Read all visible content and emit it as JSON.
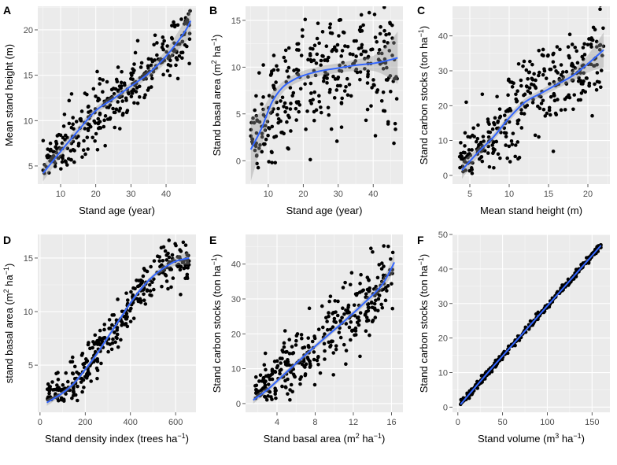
{
  "chart_data": [
    {
      "panel": "A",
      "type": "scatter",
      "xlabel": "Stand age (year)",
      "ylabel": "Mean stand height (m)",
      "xlim": [
        3.5,
        48.5
      ],
      "ylim": [
        3,
        22.6
      ],
      "xticks": [
        10,
        20,
        30,
        40
      ],
      "xtick_labels": [
        "10",
        "20",
        "30",
        "40"
      ],
      "yticks": [
        5,
        10,
        15,
        20
      ],
      "ytick_labels": [
        "5",
        "10",
        "15",
        "20"
      ],
      "smooth": {
        "x": [
          5,
          10,
          15,
          20,
          25,
          30,
          35,
          40,
          45,
          47
        ],
        "y": [
          4.2,
          6.6,
          8.9,
          11.1,
          12.4,
          13.8,
          15.2,
          17.1,
          19.6,
          21.0
        ],
        "lo": [
          3.3,
          6.0,
          8.4,
          10.7,
          12.0,
          13.4,
          14.7,
          16.4,
          18.4,
          19.5
        ],
        "hi": [
          5.1,
          7.2,
          9.4,
          11.5,
          12.8,
          14.2,
          15.7,
          17.8,
          20.8,
          22.5
        ]
      },
      "gen": {
        "n": 330,
        "xmin": 5,
        "xmax": 47,
        "noise": 1.8,
        "seed": 11
      }
    },
    {
      "panel": "B",
      "type": "scatter",
      "xlabel": "Stand age (year)",
      "ylabel": "Stand basal area (m2 ha-1)",
      "xlim": [
        3.5,
        48.5
      ],
      "ylim": [
        -2.5,
        16.5
      ],
      "xticks": [
        10,
        20,
        30,
        40
      ],
      "xtick_labels": [
        "10",
        "20",
        "30",
        "40"
      ],
      "yticks": [
        0,
        5,
        10,
        15
      ],
      "ytick_labels": [
        "0",
        "5",
        "10",
        "15"
      ],
      "smooth": {
        "x": [
          5,
          8,
          11,
          14,
          17,
          20,
          25,
          30,
          35,
          40,
          44,
          47
        ],
        "y": [
          1.2,
          3.4,
          6.2,
          7.8,
          8.6,
          9.1,
          9.6,
          9.9,
          10.2,
          10.4,
          10.7,
          11.0
        ],
        "lo": [
          -2.2,
          1.5,
          5.2,
          7.2,
          8.1,
          8.6,
          9.1,
          9.4,
          9.6,
          9.6,
          9.0,
          8.2
        ],
        "hi": [
          4.6,
          5.3,
          7.2,
          8.4,
          9.1,
          9.6,
          10.1,
          10.4,
          10.8,
          11.2,
          12.4,
          13.8
        ]
      },
      "gen": {
        "n": 340,
        "xmin": 5,
        "xmax": 47,
        "noise": 3.1,
        "seed": 23
      }
    },
    {
      "panel": "C",
      "type": "scatter",
      "xlabel": "Mean stand height (m)",
      "ylabel": "Stand carbon stocks (ton ha-1)",
      "xlim": [
        2.8,
        22.8
      ],
      "ylim": [
        -2.5,
        48.5
      ],
      "xticks": [
        5,
        10,
        15,
        20
      ],
      "xtick_labels": [
        "5",
        "10",
        "15",
        "20"
      ],
      "yticks": [
        0,
        10,
        20,
        30,
        40
      ],
      "ytick_labels": [
        "0",
        "10",
        "20",
        "30",
        "40"
      ],
      "smooth": {
        "x": [
          4,
          6,
          8,
          10,
          12,
          14,
          16,
          18,
          20,
          22
        ],
        "y": [
          1.5,
          6.5,
          11.0,
          16.5,
          21.0,
          23.5,
          26.0,
          28.5,
          32.0,
          36.0
        ],
        "lo": [
          -1.0,
          5.2,
          10.0,
          15.5,
          20.0,
          22.5,
          24.8,
          27.0,
          29.5,
          31.0
        ],
        "hi": [
          4.0,
          7.8,
          12.0,
          17.5,
          22.0,
          24.5,
          27.2,
          30.0,
          34.5,
          41.0
        ]
      },
      "gen": {
        "n": 330,
        "xmin": 3.5,
        "xmax": 22,
        "noise": 6.0,
        "seed": 37
      }
    },
    {
      "panel": "D",
      "type": "scatter",
      "xlabel": "Stand density index (trees ha-1)",
      "ylabel": "stand basal area (m2 ha-1)",
      "xlim": [
        -10,
        690
      ],
      "ylim": [
        0.6,
        17.2
      ],
      "xticks": [
        0,
        200,
        400,
        600
      ],
      "xtick_labels": [
        "0",
        "200",
        "400",
        "600"
      ],
      "yticks": [
        5,
        10,
        15
      ],
      "ytick_labels": [
        "5",
        "10",
        "15"
      ],
      "smooth": {
        "x": [
          30,
          100,
          150,
          200,
          250,
          300,
          350,
          400,
          450,
          500,
          550,
          600,
          660
        ],
        "y": [
          1.5,
          2.4,
          3.3,
          4.6,
          6.0,
          7.6,
          9.2,
          10.8,
          12.2,
          13.3,
          14.1,
          14.7,
          15.0
        ],
        "lo": [
          1.2,
          2.2,
          3.1,
          4.4,
          5.8,
          7.4,
          9.0,
          10.6,
          12.0,
          13.1,
          13.8,
          14.3,
          14.4
        ],
        "hi": [
          1.8,
          2.6,
          3.5,
          4.8,
          6.2,
          7.8,
          9.4,
          11.0,
          12.4,
          13.5,
          14.4,
          15.1,
          15.6
        ]
      },
      "gen": {
        "n": 340,
        "xmin": 30,
        "xmax": 660,
        "noise": 1.0,
        "seed": 41
      }
    },
    {
      "panel": "E",
      "type": "scatter",
      "xlabel": "Stand basal area (m2 ha-1)",
      "ylabel": "Stand carbon stocks (ton ha-1)",
      "xlim": [
        0.7,
        17.2
      ],
      "ylim": [
        -2.5,
        48.5
      ],
      "xticks": [
        4,
        8,
        12,
        16
      ],
      "xtick_labels": [
        "4",
        "8",
        "12",
        "16"
      ],
      "yticks": [
        0,
        10,
        20,
        30,
        40
      ],
      "ytick_labels": [
        "0",
        "10",
        "20",
        "30",
        "40"
      ],
      "smooth": {
        "x": [
          1.5,
          3,
          5,
          7,
          9,
          11,
          13,
          15,
          16.3
        ],
        "y": [
          1.0,
          4.0,
          9.0,
          14.0,
          18.8,
          23.5,
          28.5,
          34.0,
          40.5
        ],
        "lo": [
          0.0,
          3.2,
          8.3,
          13.3,
          18.1,
          22.8,
          27.6,
          32.6,
          38.0
        ],
        "hi": [
          2.0,
          4.8,
          9.7,
          14.7,
          19.5,
          24.2,
          29.4,
          35.4,
          43.0
        ]
      },
      "gen": {
        "n": 340,
        "xmin": 1.5,
        "xmax": 16.3,
        "noise": 5.0,
        "seed": 53
      }
    },
    {
      "panel": "F",
      "type": "scatter",
      "xlabel": "Stand volume (m3 ha-1)",
      "ylabel": "Stand carbon stocks (ton ha-1)",
      "xlim": [
        -6,
        170
      ],
      "ylim": [
        -1.5,
        50
      ],
      "xticks": [
        0,
        50,
        100,
        150
      ],
      "xtick_labels": [
        "0",
        "50",
        "100",
        "150"
      ],
      "yticks": [
        0,
        10,
        20,
        30,
        40,
        50
      ],
      "ytick_labels": [
        "0",
        "10",
        "20",
        "30",
        "40",
        "50"
      ],
      "smooth": {
        "x": [
          3,
          40,
          80,
          120,
          160
        ],
        "y": [
          0.8,
          11.9,
          23.5,
          35.1,
          46.8
        ],
        "lo": [
          0.6,
          11.8,
          23.4,
          35.0,
          46.5
        ],
        "hi": [
          1.0,
          12.0,
          23.6,
          35.2,
          47.1
        ]
      },
      "gen": {
        "n": 340,
        "xmin": 3,
        "xmax": 160,
        "noise": 0.45,
        "seed": 67
      }
    }
  ]
}
